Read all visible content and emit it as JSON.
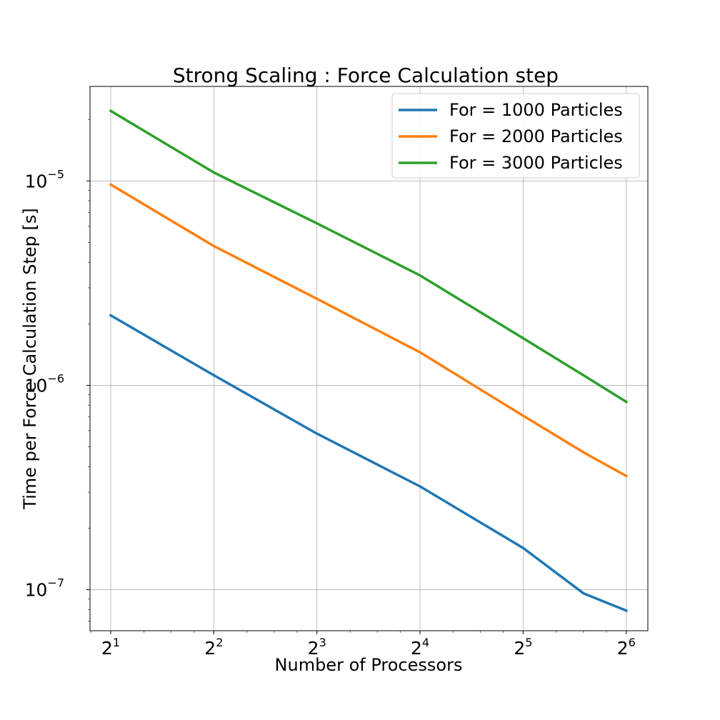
{
  "chart_data": {
    "type": "line",
    "title": "Strong Scaling : Force Calculation step",
    "xlabel": "Number of Processors",
    "ylabel": "Time per Force Calculation Step [s]",
    "x_scale": "log2",
    "y_scale": "log10",
    "xlim": [
      1.74,
      74
    ],
    "ylim": [
      6.3e-08,
      2.9e-05
    ],
    "x_ticks": [
      {
        "value": 2,
        "base": "2",
        "exp": "1"
      },
      {
        "value": 4,
        "base": "2",
        "exp": "2"
      },
      {
        "value": 8,
        "base": "2",
        "exp": "3"
      },
      {
        "value": 16,
        "base": "2",
        "exp": "4"
      },
      {
        "value": 32,
        "base": "2",
        "exp": "5"
      },
      {
        "value": 64,
        "base": "2",
        "exp": "6"
      }
    ],
    "y_ticks": [
      {
        "value": 1e-07,
        "base": "10",
        "exp": "−7"
      },
      {
        "value": 1e-06,
        "base": "10",
        "exp": "−6"
      },
      {
        "value": 1e-05,
        "base": "10",
        "exp": "−5"
      }
    ],
    "grid": true,
    "legend_position": "top-right",
    "series": [
      {
        "name": "For = 1000 Particles",
        "color": "#1f77b4",
        "x": [
          2,
          4,
          8,
          16,
          32,
          48,
          64
        ],
        "y": [
          2.2e-06,
          1.12e-06,
          5.8e-07,
          3.2e-07,
          1.6e-07,
          9.6e-08,
          7.9e-08
        ]
      },
      {
        "name": "For = 2000 Particles",
        "color": "#ff7f0e",
        "x": [
          2,
          4,
          8,
          16,
          32,
          48,
          64
        ],
        "y": [
          9.6e-06,
          4.8e-06,
          2.65e-06,
          1.45e-06,
          7.1e-07,
          4.7e-07,
          3.6e-07
        ]
      },
      {
        "name": "For = 3000 Particles",
        "color": "#2ca02c",
        "x": [
          2,
          4,
          8,
          16,
          32,
          48,
          64
        ],
        "y": [
          2.2e-05,
          1.1e-05,
          6.2e-06,
          3.45e-06,
          1.7e-06,
          1.12e-06,
          8.3e-07
        ]
      }
    ]
  }
}
